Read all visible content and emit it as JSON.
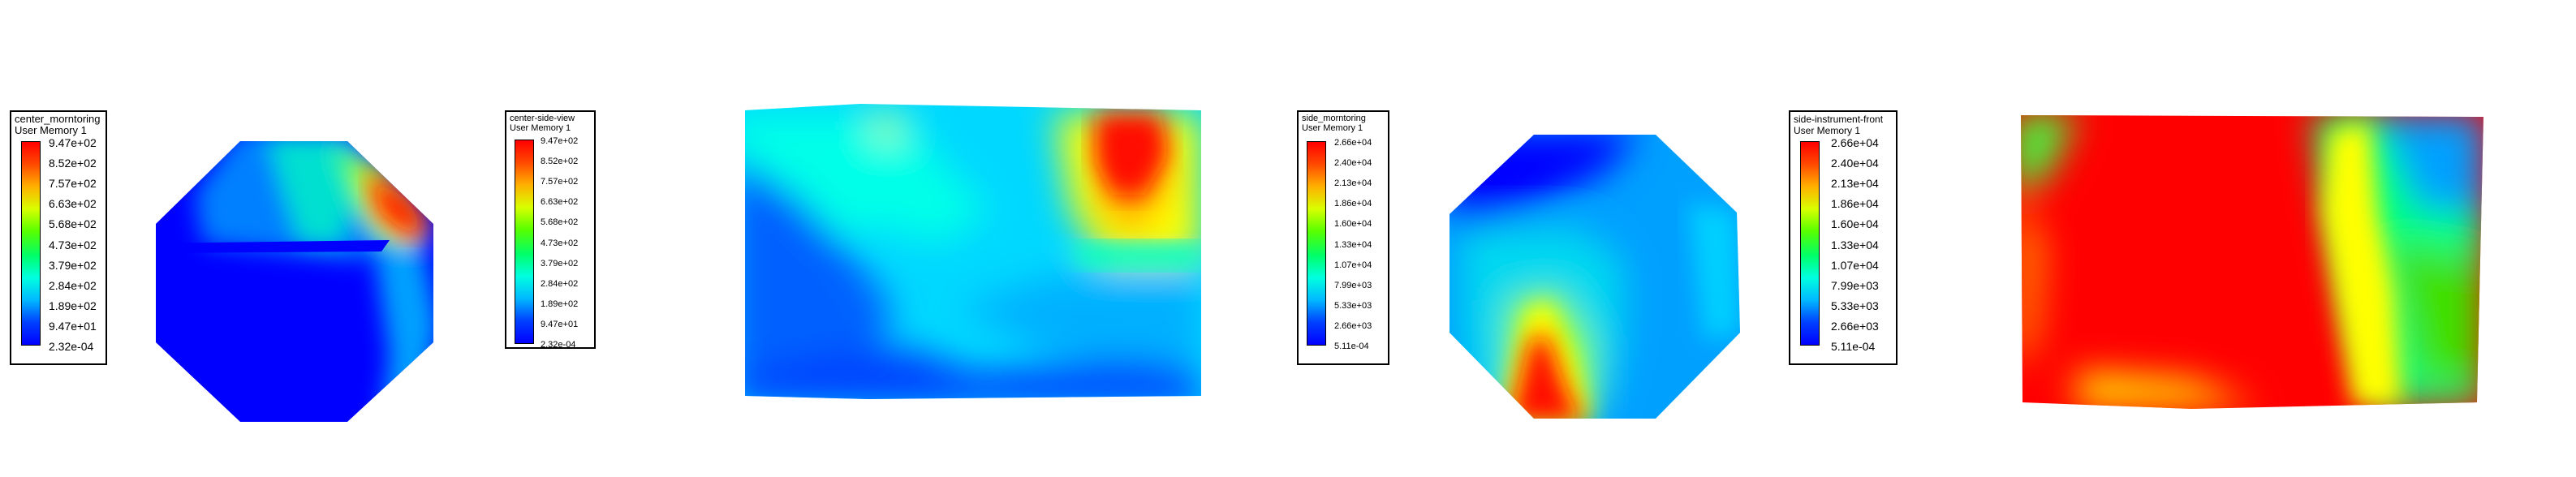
{
  "legends": [
    {
      "title": "center_morntoring",
      "subtitle": "User Memory 1",
      "ticks": [
        "9.47e+02",
        "8.52e+02",
        "7.57e+02",
        "6.63e+02",
        "5.68e+02",
        "4.73e+02",
        "3.79e+02",
        "2.84e+02",
        "1.89e+02",
        "9.47e+01",
        "2.32e-04"
      ]
    },
    {
      "title": "center-side-view",
      "subtitle": "User Memory 1",
      "ticks": [
        "9.47e+02",
        "8.52e+02",
        "7.57e+02",
        "6.63e+02",
        "5.68e+02",
        "4.73e+02",
        "3.79e+02",
        "2.84e+02",
        "1.89e+02",
        "9.47e+01",
        "2.32e-04"
      ]
    },
    {
      "title": "side_morntoring",
      "subtitle": "User Memory 1",
      "ticks": [
        "2.66e+04",
        "2.40e+04",
        "2.13e+04",
        "1.86e+04",
        "1.60e+04",
        "1.33e+04",
        "1.07e+04",
        "7.99e+03",
        "5.33e+03",
        "2.66e+03",
        "5.11e-04"
      ]
    },
    {
      "title": "side-instrument-front",
      "subtitle": "User Memory 1",
      "ticks": [
        "2.66e+04",
        "2.40e+04",
        "2.13e+04",
        "1.86e+04",
        "1.60e+04",
        "1.33e+04",
        "1.07e+04",
        "7.99e+03",
        "5.33e+03",
        "2.66e+03",
        "5.11e-04"
      ]
    }
  ],
  "colors": {
    "red": "#ff0000",
    "orange": "#ff8c00",
    "yellow": "#ffff00",
    "green": "#00e000",
    "cyan": "#00ffff",
    "lightblue": "#00c8ff",
    "blue": "#0090ff",
    "navy": "#0000ff"
  }
}
